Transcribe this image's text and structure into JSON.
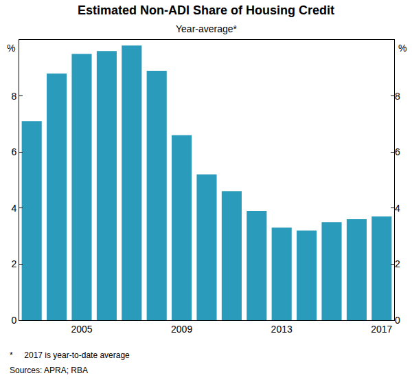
{
  "chart_data": {
    "type": "bar",
    "title": "Estimated Non-ADI Share of Housing Credit",
    "subtitle": "Year-average*",
    "ylabel": "%",
    "categories": [
      null,
      null,
      "2005",
      null,
      null,
      null,
      "2009",
      null,
      null,
      null,
      "2013",
      null,
      null,
      null,
      "2017"
    ],
    "values": [
      7.1,
      8.8,
      9.5,
      9.6,
      9.8,
      8.9,
      6.6,
      5.2,
      4.6,
      3.9,
      3.3,
      3.2,
      3.5,
      3.6,
      3.7
    ],
    "color": "#2b9bbb",
    "ylim": [
      0,
      10
    ],
    "yticks": [
      0,
      2,
      4,
      6,
      8
    ],
    "grid": false,
    "notes": [
      "*     2017 is year-to-date average",
      "Sources: APRA; RBA"
    ]
  }
}
